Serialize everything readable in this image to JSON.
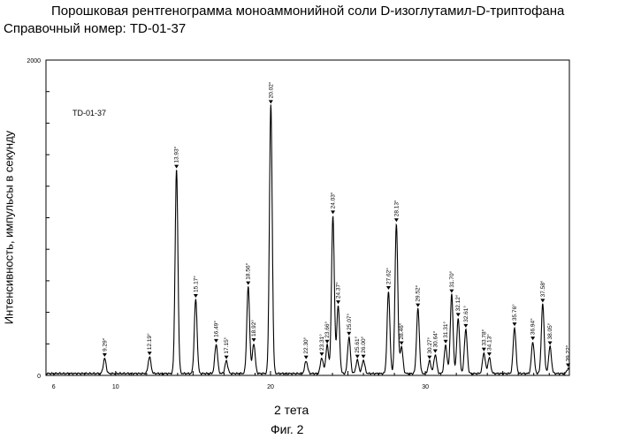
{
  "figure": {
    "title": "Порошковая рентгенограмма моноаммонийной соли D-изоглутамил-D-триптофана",
    "subtitle": "Справочный номер: TD-01-37",
    "caption": "Фиг. 2"
  },
  "chart_data": {
    "type": "line",
    "xlabel": "2 тета",
    "ylabel": "Интенсивность, импульсы в секунду",
    "xlim": [
      5.5,
      39.3
    ],
    "ylim": [
      0,
      2000
    ],
    "x_ticks": [
      6,
      10,
      20,
      30
    ],
    "y_ticks": [
      0,
      2000
    ],
    "grid": false,
    "annotation": "TD-01-37",
    "baseline": 12,
    "peaks": [
      {
        "x": 9.29,
        "y": 95,
        "label": "9.29°"
      },
      {
        "x": 12.19,
        "y": 105,
        "label": "12.19°"
      },
      {
        "x": 13.93,
        "y": 1290,
        "label": "13.93°"
      },
      {
        "x": 15.17,
        "y": 470,
        "label": "15.17°"
      },
      {
        "x": 16.49,
        "y": 185,
        "label": "16.49°"
      },
      {
        "x": 17.15,
        "y": 80,
        "label": "17.15°"
      },
      {
        "x": 18.56,
        "y": 550,
        "label": "18.56°"
      },
      {
        "x": 18.92,
        "y": 190,
        "label": "18.92°"
      },
      {
        "x": 20.02,
        "y": 1700,
        "label": "20.02°"
      },
      {
        "x": 22.3,
        "y": 80,
        "label": "22.30°"
      },
      {
        "x": 23.31,
        "y": 100,
        "label": "23.31°"
      },
      {
        "x": 23.66,
        "y": 180,
        "label": "23.66°"
      },
      {
        "x": 24.03,
        "y": 1000,
        "label": "24.03°"
      },
      {
        "x": 24.37,
        "y": 430,
        "label": "24.37°"
      },
      {
        "x": 25.07,
        "y": 230,
        "label": "25.07°"
      },
      {
        "x": 25.61,
        "y": 85,
        "label": "25.61°"
      },
      {
        "x": 26.0,
        "y": 85,
        "label": "26.00°"
      },
      {
        "x": 27.62,
        "y": 520,
        "label": "27.62°"
      },
      {
        "x": 28.13,
        "y": 950,
        "label": "28.13°"
      },
      {
        "x": 28.46,
        "y": 170,
        "label": "28.46°"
      },
      {
        "x": 29.52,
        "y": 410,
        "label": "29.52°"
      },
      {
        "x": 30.27,
        "y": 80,
        "label": "30.27°"
      },
      {
        "x": 30.64,
        "y": 120,
        "label": "30.64°"
      },
      {
        "x": 31.31,
        "y": 180,
        "label": "31.31°"
      },
      {
        "x": 31.7,
        "y": 500,
        "label": "31.70°"
      },
      {
        "x": 32.12,
        "y": 350,
        "label": "32.12°"
      },
      {
        "x": 32.61,
        "y": 280,
        "label": "32.61°"
      },
      {
        "x": 33.78,
        "y": 130,
        "label": "33.78°"
      },
      {
        "x": 34.13,
        "y": 100,
        "label": "34.13°"
      },
      {
        "x": 35.76,
        "y": 290,
        "label": "35.76°"
      },
      {
        "x": 36.94,
        "y": 200,
        "label": "36.94°"
      },
      {
        "x": 37.58,
        "y": 440,
        "label": "37.58°"
      },
      {
        "x": 38.05,
        "y": 170,
        "label": "38.05°"
      },
      {
        "x": 39.22,
        "y": 30,
        "label": "39.22°"
      }
    ]
  }
}
